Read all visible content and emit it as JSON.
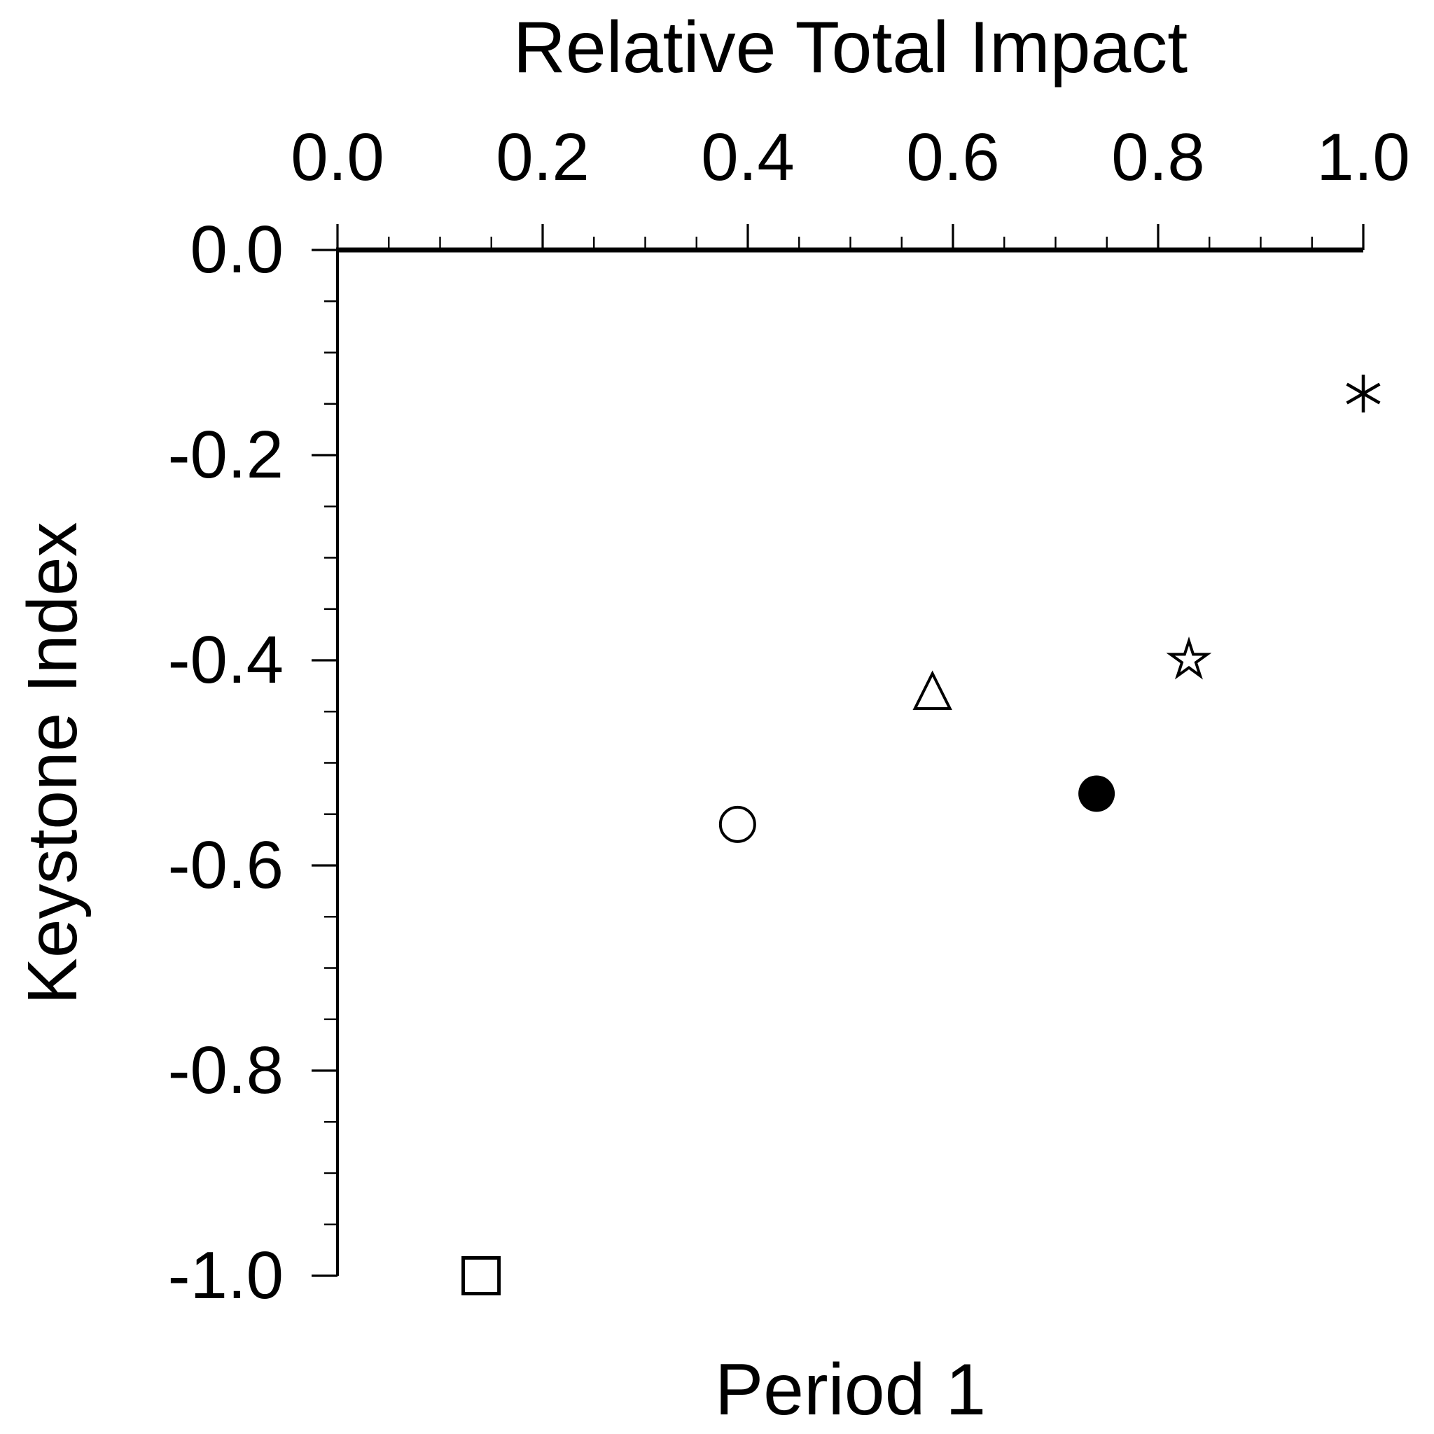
{
  "chart_data": {
    "type": "scatter",
    "title": "Relative Total Impact",
    "xlabel": "Relative Total Impact",
    "ylabel": "Keystone Index",
    "bottom_label": "Period 1",
    "xlim": [
      0.0,
      1.0
    ],
    "ylim": [
      -1.0,
      0.0
    ],
    "x_axis_position": "top",
    "grid": false,
    "legend": "none",
    "x_ticks": [
      0.0,
      0.2,
      0.4,
      0.6,
      0.8,
      1.0
    ],
    "x_tick_labels": [
      "0.0",
      "0.2",
      "0.4",
      "0.6",
      "0.8",
      "1.0"
    ],
    "y_ticks": [
      0.0,
      -0.2,
      -0.4,
      -0.6,
      -0.8,
      -1.0
    ],
    "y_tick_labels": [
      "0.0",
      "-0.2",
      "-0.4",
      "-0.6",
      "-0.8",
      "-1.0"
    ],
    "minor_tick_interval": 0.05,
    "points": [
      {
        "marker": "asterisk",
        "x": 1.0,
        "y": -0.14
      },
      {
        "marker": "open-star",
        "x": 0.83,
        "y": -0.4
      },
      {
        "marker": "open-triangle",
        "x": 0.58,
        "y": -0.43
      },
      {
        "marker": "filled-circle",
        "x": 0.74,
        "y": -0.53
      },
      {
        "marker": "open-circle",
        "x": 0.39,
        "y": -0.56
      },
      {
        "marker": "open-square",
        "x": 0.14,
        "y": -1.0
      }
    ],
    "colors": {
      "foreground": "#000000",
      "background": "#ffffff"
    }
  }
}
